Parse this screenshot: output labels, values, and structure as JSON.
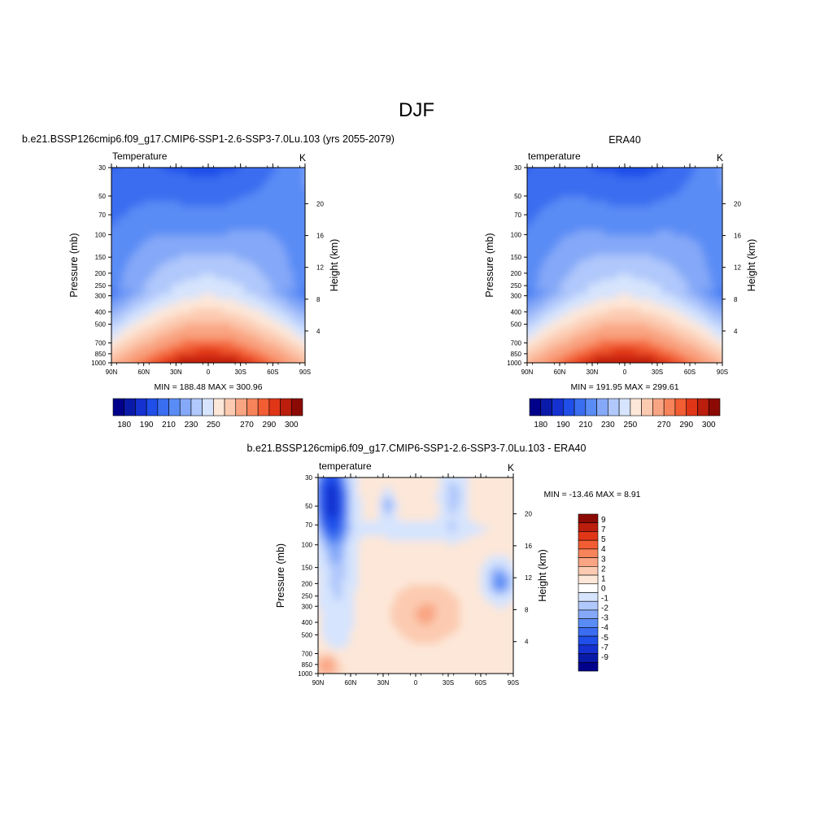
{
  "page": {
    "title": "DJF"
  },
  "colors": {
    "temp_palette": [
      "#00008b",
      "#0a1aa8",
      "#1531d0",
      "#1f4ee8",
      "#3a6df0",
      "#5a8cf5",
      "#85a9f8",
      "#b0c8fb",
      "#d6e4fd",
      "#fde7d8",
      "#fccab0",
      "#f9a583",
      "#f7835a",
      "#f25d33",
      "#e03617",
      "#bb1e0c",
      "#8c0a04"
    ],
    "diff_palette": [
      "#00008b",
      "#0a1aa8",
      "#1531d0",
      "#1f4ee8",
      "#3a6df0",
      "#5a8cf5",
      "#85a9f8",
      "#b0c8fb",
      "#d6e4fd",
      "#ffffff",
      "#fde7d8",
      "#fccab0",
      "#f9a583",
      "#f7835a",
      "#f25d33",
      "#e03617",
      "#bb1e0c",
      "#8c0a04"
    ]
  },
  "chart_data": [
    {
      "type": "heatmap",
      "panel": "model",
      "header": "b.e21.BSSP126cmip6.f09_g17.CMIP6-SSP1-2.6-SSP3-7.0Lu.103 (yrs 2055-2079)",
      "title": "Temperature",
      "units": "K",
      "ylabel": "Pressure (mb)",
      "y2label": "Height (km)",
      "x_ticks": [
        "90N",
        "60N",
        "30N",
        "0",
        "30S",
        "60S",
        "90S"
      ],
      "y_ticks": [
        "30",
        "50",
        "70",
        "100",
        "150",
        "200",
        "250",
        "300",
        "400",
        "500",
        "700",
        "850",
        "1000"
      ],
      "y2_ticks": [
        "4",
        "8",
        "12",
        "16",
        "20"
      ],
      "minmax": "MIN = 188.48  MAX = 300.96",
      "min": 188.48,
      "max": 300.96,
      "colorbar_labels": [
        "180",
        "190",
        "210",
        "230",
        "250",
        "270",
        "290",
        "300"
      ]
    },
    {
      "type": "heatmap",
      "panel": "obs",
      "header": "ERA40",
      "title": "temperature",
      "units": "K",
      "ylabel": "Pressure (mb)",
      "y2label": "Height (km)",
      "x_ticks": [
        "90N",
        "60N",
        "30N",
        "0",
        "30S",
        "60S",
        "90S"
      ],
      "y_ticks": [
        "30",
        "50",
        "70",
        "100",
        "150",
        "200",
        "250",
        "300",
        "400",
        "500",
        "700",
        "850",
        "1000"
      ],
      "y2_ticks": [
        "4",
        "8",
        "12",
        "16",
        "20"
      ],
      "minmax": "MIN = 191.95  MAX = 299.61",
      "min": 191.95,
      "max": 299.61,
      "colorbar_labels": [
        "180",
        "190",
        "210",
        "230",
        "250",
        "270",
        "290",
        "300"
      ]
    },
    {
      "type": "heatmap",
      "panel": "diff",
      "header": "b.e21.BSSP126cmip6.f09_g17.CMIP6-SSP1-2.6-SSP3-7.0Lu.103 - ERA40",
      "title": "temperature",
      "units": "K",
      "ylabel": "Pressure (mb)",
      "y2label": "Height (km)",
      "x_ticks": [
        "90N",
        "60N",
        "30N",
        "0",
        "30S",
        "60S",
        "90S"
      ],
      "y_ticks": [
        "30",
        "50",
        "70",
        "100",
        "150",
        "200",
        "250",
        "300",
        "400",
        "500",
        "700",
        "850",
        "1000"
      ],
      "y2_ticks": [
        "4",
        "8",
        "12",
        "16",
        "20"
      ],
      "minmax": "MIN = -13.46  MAX =   8.91",
      "min": -13.46,
      "max": 8.91,
      "colorbar_labels": [
        "9",
        "7",
        "5",
        "4",
        "3",
        "2",
        "1",
        "0",
        "-1",
        "-2",
        "-3",
        "-4",
        "-5",
        "-7",
        "-9"
      ]
    }
  ]
}
